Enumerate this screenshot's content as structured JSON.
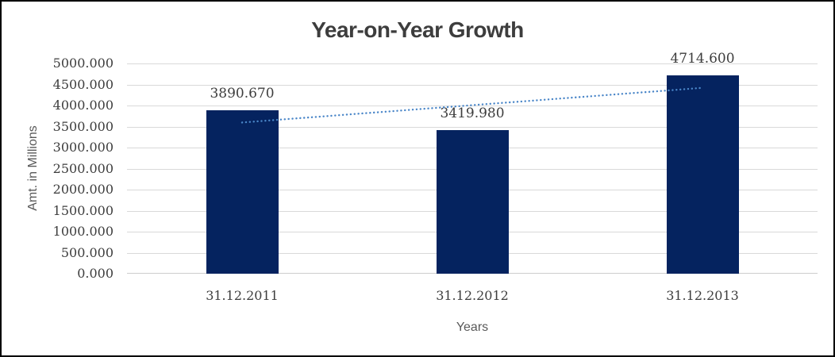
{
  "chart_data": {
    "type": "bar",
    "title": "Year-on-Year Growth",
    "categories": [
      "31.12.2011",
      "31.12.2012",
      "31.12.2013"
    ],
    "values": [
      3890.67,
      3419.98,
      4714.6
    ],
    "data_labels": [
      "3890.670",
      "3419.980",
      "4714.600"
    ],
    "xlabel": "Years",
    "ylabel": "Amt. in Millions",
    "ylim": [
      0,
      5000
    ],
    "ytick_step": 500,
    "ytick_labels": [
      "0.000",
      "500.000",
      "1000.000",
      "1500.000",
      "2000.000",
      "2500.000",
      "3000.000",
      "3500.000",
      "4000.000",
      "4500.000",
      "5000.000"
    ],
    "grid": true,
    "legend_position": "none",
    "trendline": {
      "type": "linear",
      "style": "dotted"
    }
  },
  "colors": {
    "bar": "#05235f",
    "trendline": "#4a86c8",
    "gridline": "#d9d9d9",
    "axis_line": "#cdcdcd",
    "title_text": "#3d3d3d",
    "tick_text": "#3d3d3d",
    "axis_title_text": "#595959",
    "border": "#000000",
    "background": "#ffffff"
  }
}
